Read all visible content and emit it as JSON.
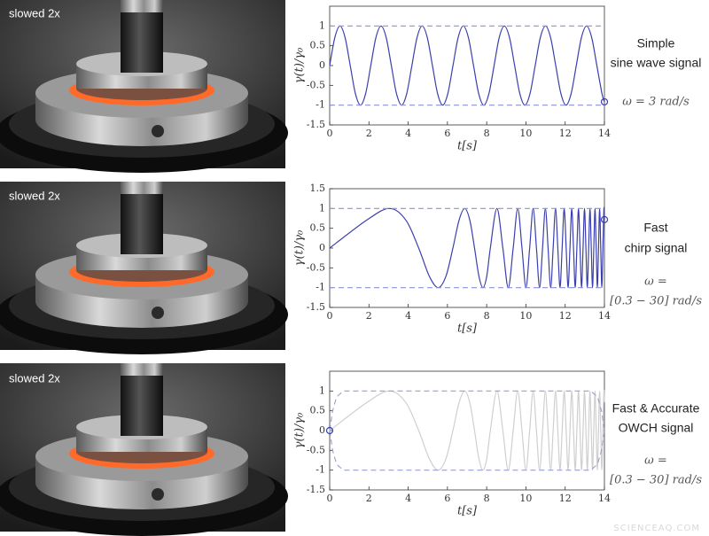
{
  "chart_data": [
    {
      "type": "line",
      "photo_label": "slowed 2x",
      "x_label": "t[s]",
      "y_label": "γ(t)/γ₀",
      "annotations": [
        "Simple",
        "sine wave signal",
        "ω = 3 rad/s"
      ],
      "xlim": [
        0,
        14
      ],
      "xticks": [
        0,
        2,
        4,
        6,
        8,
        10,
        12,
        14
      ],
      "ylim": [
        -1.5,
        1.5
      ],
      "yticks": [
        -1.5,
        -1,
        -0.5,
        0,
        0.5,
        1
      ],
      "series": [
        {
          "color": "#3b3fae",
          "style": "solid",
          "x": [
            0,
            0.262,
            0.524,
            0.785,
            1.047,
            1.309,
            1.571,
            1.833,
            2.094,
            2.356,
            2.618,
            2.88,
            3.142,
            3.403,
            3.665,
            3.927,
            4.189,
            4.451,
            4.712,
            4.974,
            5.236,
            5.498,
            5.76,
            6.021,
            6.283,
            6.545,
            6.807,
            7.069,
            7.33,
            7.592,
            7.854,
            8.116,
            8.378,
            8.639,
            8.901,
            9.163,
            9.425,
            9.687,
            9.948,
            10.21,
            10.472,
            10.734,
            10.996,
            11.257,
            11.519,
            11.781,
            12.043,
            12.305,
            12.566,
            12.828,
            13.09,
            13.352,
            13.614,
            13.875,
            14
          ],
          "values": [
            0,
            0.707,
            1,
            0.707,
            0,
            -0.707,
            -1,
            -0.707,
            0,
            0.707,
            1,
            0.707,
            0,
            -0.707,
            -1,
            -0.707,
            0,
            0.707,
            1,
            0.707,
            0,
            -0.707,
            -1,
            -0.707,
            0,
            0.707,
            1,
            0.707,
            0,
            -0.707,
            -1,
            -0.707,
            0,
            0.707,
            1,
            0.707,
            0,
            -0.707,
            -1,
            -0.707,
            0,
            0.707,
            1,
            0.707,
            0,
            -0.707,
            -1,
            -0.707,
            0,
            0.707,
            1,
            0.707,
            0,
            -0.707,
            -0.916
          ]
        },
        {
          "color": "#8d92d6",
          "style": "dashed",
          "x": [
            0,
            14
          ],
          "values": [
            1,
            1
          ]
        },
        {
          "color": "#8d92d6",
          "style": "dashed",
          "x": [
            0,
            14
          ],
          "values": [
            -1,
            -1
          ]
        },
        {
          "color": "#3b3fae",
          "style": "marker",
          "x": [
            14
          ],
          "values": [
            -0.916
          ]
        }
      ]
    },
    {
      "type": "line",
      "photo_label": "slowed 2x",
      "x_label": "t[s]",
      "y_label": "γ(t)/γ₀",
      "annotations": [
        "Fast",
        "chirp signal",
        "ω =",
        "[0.3 − 30] rad/s"
      ],
      "xlim": [
        0,
        14
      ],
      "xticks": [
        0,
        2,
        4,
        6,
        8,
        10,
        12,
        14
      ],
      "ylim": [
        -1.5,
        1.5
      ],
      "yticks": [
        -1.5,
        -1,
        -0.5,
        0,
        0.5,
        1,
        1.5
      ],
      "series": [
        {
          "color": "#3b3fae",
          "style": "solid",
          "x": [
            0,
            1.889,
            3.045,
            3.88,
            4.535,
            5.073,
            5.53,
            5.928,
            6.279,
            6.594,
            6.88,
            7.14,
            7.381,
            7.603,
            7.811,
            8.005,
            8.187,
            8.522,
            8.824,
            9.099,
            9.351,
            9.583,
            9.799,
            10.001,
            10.19,
            10.368,
            10.536,
            10.696,
            10.847,
            10.991,
            11.129,
            11.261,
            11.387,
            11.508,
            11.625,
            11.737,
            11.845,
            11.95,
            12.051,
            12.149,
            12.244,
            12.335,
            12.425,
            12.511,
            12.596,
            12.678,
            12.757,
            12.835,
            12.911,
            12.985,
            13.057,
            13.128,
            13.197,
            13.264,
            13.33,
            13.394,
            13.458,
            13.52,
            13.581,
            13.64,
            13.699,
            13.756,
            13.812,
            13.867,
            13.921,
            13.975,
            14
          ],
          "values": [
            0,
            0.707,
            1,
            0.707,
            0,
            -0.707,
            -1,
            -0.707,
            0,
            0.707,
            1,
            0.707,
            0,
            -0.707,
            -1,
            -0.707,
            0,
            1,
            0,
            -1,
            0,
            1,
            0,
            -1,
            0,
            1,
            0,
            -1,
            0,
            1,
            0,
            -1,
            0,
            1,
            0,
            -1,
            0,
            1,
            0,
            -1,
            0,
            1,
            0,
            -1,
            0,
            1,
            0,
            -1,
            0,
            1,
            0,
            -1,
            0,
            1,
            0,
            -1,
            0,
            1,
            0,
            -1,
            0,
            1,
            0,
            -1,
            0,
            1,
            0.72
          ]
        },
        {
          "color": "#8d92d6",
          "style": "dashed",
          "x": [
            0,
            14
          ],
          "values": [
            1,
            1
          ]
        },
        {
          "color": "#8d92d6",
          "style": "dashed",
          "x": [
            0,
            14
          ],
          "values": [
            -1,
            -1
          ]
        },
        {
          "color": "#3b3fae",
          "style": "marker",
          "x": [
            14
          ],
          "values": [
            0.72
          ]
        }
      ]
    },
    {
      "type": "line",
      "photo_label": "slowed 2x",
      "x_label": "t[s]",
      "y_label": "γ(t)/γ₀",
      "annotations": [
        "Fast & Accurate",
        "OWCH signal",
        "ω =",
        "[0.3 − 30] rad/s"
      ],
      "xlim": [
        0,
        14
      ],
      "xticks": [
        0,
        2,
        4,
        6,
        8,
        10,
        12,
        14
      ],
      "ylim": [
        -1.5,
        1.5
      ],
      "yticks": [
        -1.5,
        -1,
        -0.5,
        0,
        0.5,
        1
      ],
      "series": [
        {
          "color": "#cfcfcf",
          "style": "solid",
          "x": [
            0,
            1.889,
            3.045,
            3.88,
            4.535,
            5.073,
            5.53,
            5.928,
            6.279,
            6.594,
            6.88,
            7.14,
            7.381,
            7.603,
            7.811,
            8.005,
            8.187,
            8.522,
            8.824,
            9.099,
            9.351,
            9.583,
            9.799,
            10.001,
            10.19,
            10.368,
            10.536,
            10.696,
            10.847,
            10.991,
            11.129,
            11.261,
            11.387,
            11.508,
            11.625,
            11.737,
            11.845,
            11.95,
            12.051,
            12.149,
            12.244,
            12.335,
            12.425,
            12.511,
            12.596,
            12.678,
            12.757,
            12.835,
            12.911,
            12.985,
            13.057,
            13.128,
            13.197,
            13.264,
            13.33,
            13.394,
            13.458,
            13.52,
            13.581,
            13.64,
            13.699,
            13.756,
            13.812,
            13.867,
            13.921,
            13.975,
            14
          ],
          "values": [
            0,
            0.707,
            1,
            0.707,
            0,
            -0.707,
            -1,
            -0.707,
            0,
            0.707,
            1,
            0.707,
            0,
            -0.707,
            -1,
            -0.707,
            0,
            1,
            0,
            -1,
            0,
            1,
            0,
            -1,
            0,
            1,
            0,
            -1,
            0,
            1,
            0,
            -1,
            0,
            1,
            0,
            -1,
            0,
            1,
            0,
            -1,
            0,
            1,
            0,
            -1,
            0,
            1,
            0,
            -1,
            0,
            1,
            0,
            -1,
            0,
            1,
            0,
            -1,
            0,
            1,
            0,
            -1,
            0,
            1,
            0,
            -1,
            0,
            1,
            0.72
          ]
        },
        {
          "color": "#9a9fcf",
          "style": "dashed",
          "x": [
            0,
            0.15,
            0.35,
            0.7,
            13.3,
            13.65,
            13.85,
            14
          ],
          "values": [
            0,
            0.5,
            0.85,
            1,
            1,
            0.85,
            0.5,
            0
          ]
        },
        {
          "color": "#9a9fcf",
          "style": "dashed",
          "x": [
            0,
            0.15,
            0.35,
            0.7,
            13.3,
            13.65,
            13.85,
            14
          ],
          "values": [
            0,
            -0.5,
            -0.85,
            -1,
            -1,
            -0.85,
            -0.5,
            0
          ]
        },
        {
          "color": "#3b3fae",
          "style": "marker",
          "x": [
            0
          ],
          "values": [
            0
          ]
        }
      ]
    }
  ],
  "watermark": "SCIENCEAQ.COM"
}
